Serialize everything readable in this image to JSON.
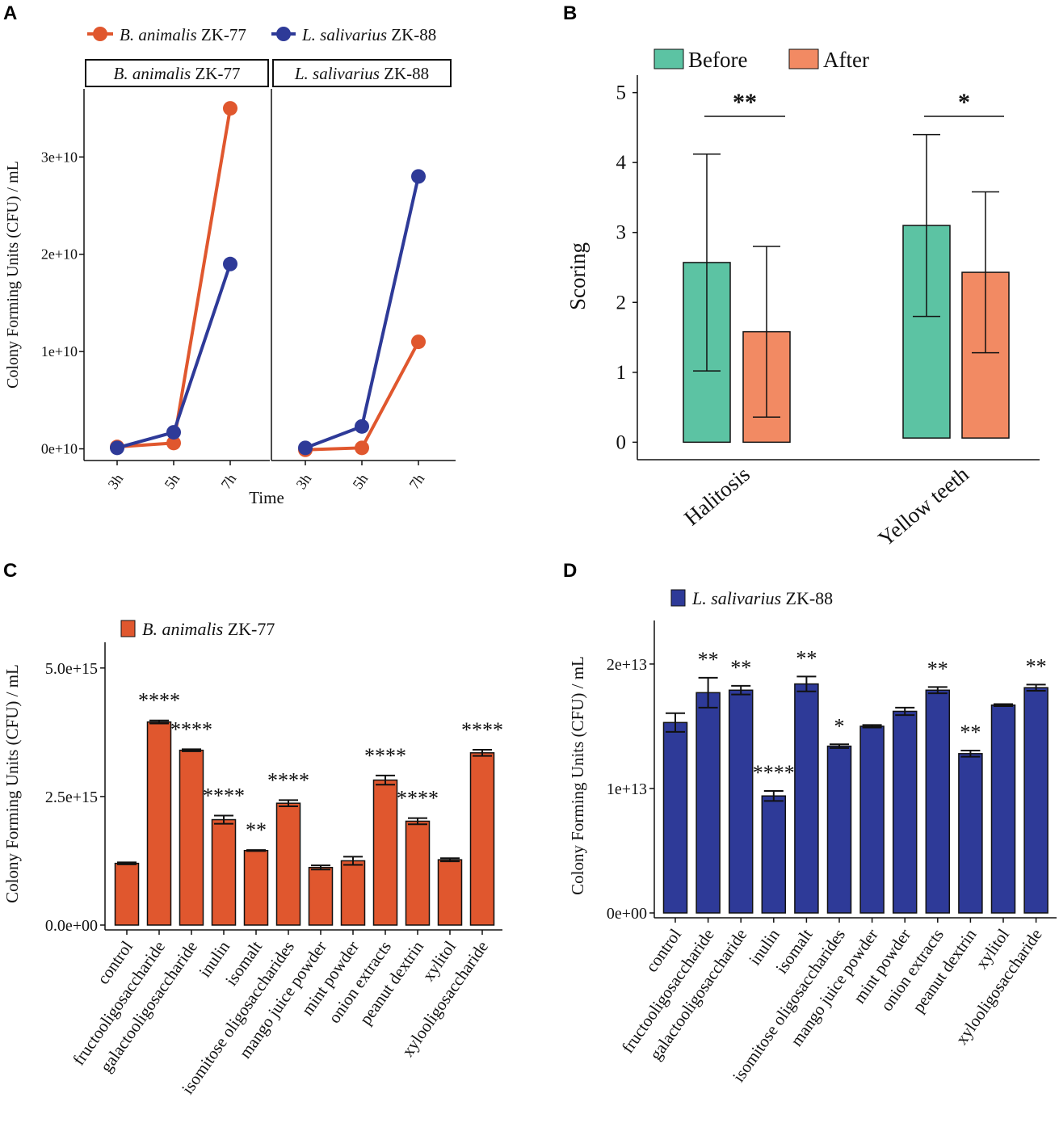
{
  "colors": {
    "orange": "#e0572e",
    "blue": "#2e3a98",
    "teal": "#5cc3a3",
    "salmon": "#f28a63",
    "black": "#111111"
  },
  "chart_data": [
    {
      "panel": "A",
      "type": "line",
      "legend": [
        "B. animalis ZK-77",
        "L. salivarius ZK-88"
      ],
      "facets": [
        "B. animalis ZK-77",
        "L. salivarius ZK-88"
      ],
      "categories": [
        "3h",
        "5h",
        "7h"
      ],
      "ylabel": "Colony Forming Units (CFU) / mL",
      "xlabel": "Time",
      "yticks": [
        "0e+10",
        "1e+10",
        "2e+10",
        "3e+10"
      ],
      "ylim": [
        -1200000000.0,
        37000000000.0
      ],
      "facet_series": [
        [
          {
            "name": "B. animalis ZK-77",
            "values": [
              200000000.0,
              600000000.0,
              35000000000.0
            ]
          },
          {
            "name": "L. salivarius ZK-88",
            "values": [
              100000000.0,
              1700000000.0,
              19000000000.0
            ]
          }
        ],
        [
          {
            "name": "B. animalis ZK-77",
            "values": [
              -100000000.0,
              100000000.0,
              11000000000.0
            ]
          },
          {
            "name": "L. salivarius ZK-88",
            "values": [
              100000000.0,
              2300000000.0,
              28000000000.0
            ]
          }
        ]
      ]
    },
    {
      "panel": "B",
      "type": "bar",
      "legend": [
        "Before",
        "After"
      ],
      "categories": [
        "Halitosis",
        "Yellow teeth"
      ],
      "ylabel": "Scoring",
      "yticks": [
        "0",
        "1",
        "2",
        "3",
        "4",
        "5"
      ],
      "ylim": [
        -0.25,
        5.25
      ],
      "series": [
        {
          "name": "Before",
          "values": [
            2.57,
            3.1
          ],
          "errors": [
            1.55,
            1.3
          ]
        },
        {
          "name": "After",
          "values": [
            1.58,
            2.43
          ],
          "errors": [
            1.22,
            1.15
          ]
        }
      ],
      "significance": [
        "**",
        "*"
      ]
    },
    {
      "panel": "C",
      "type": "bar",
      "legend": [
        "B. animalis ZK-77"
      ],
      "ylabel": "Colony Forming Units (CFU) / mL",
      "yticks": [
        "0.0e+00",
        "2.5e+15",
        "5.0e+15"
      ],
      "ylim": [
        0,
        5500000000000000.0
      ],
      "categories": [
        "control",
        "fructooligosaccharide",
        "galactooligosaccharide",
        "inulin",
        "isomalt",
        "isomitose oligosaccharides",
        "mango juice powder",
        "mint powder",
        "onion extracts",
        "peanut dextrin",
        "xylitol",
        "xylooligosaccharide"
      ],
      "values": [
        1200000000000000.0,
        3950000000000000.0,
        3400000000000000.0,
        2050000000000000.0,
        1450000000000000.0,
        2370000000000000.0,
        1120000000000000.0,
        1250000000000000.0,
        2820000000000000.0,
        2020000000000000.0,
        1270000000000000.0,
        3350000000000000.0
      ],
      "errors": [
        20000000000000.0,
        30000000000000.0,
        20000000000000.0,
        80000000000000.0,
        10000000000000.0,
        60000000000000.0,
        40000000000000.0,
        80000000000000.0,
        90000000000000.0,
        60000000000000.0,
        30000000000000.0,
        60000000000000.0
      ],
      "significance": [
        "",
        "****",
        "****",
        "****",
        "**",
        "****",
        "",
        "",
        "****",
        "****",
        "",
        "****"
      ]
    },
    {
      "panel": "D",
      "type": "bar",
      "legend": [
        "L. salivarius ZK-88"
      ],
      "ylabel": "Colony Forming Units (CFU) / mL",
      "yticks": [
        "0e+00",
        "1e+13",
        "2e+13"
      ],
      "ylim": [
        0,
        23500000000000.0
      ],
      "categories": [
        "control",
        "fructooligosaccharide",
        "galactooligosaccharide",
        "inulin",
        "isomalt",
        "isomitose oligosaccharides",
        "mango juice powder",
        "mint powder",
        "onion extracts",
        "peanut dextrin",
        "xylitol",
        "xylooligosaccharide"
      ],
      "values": [
        15300000000000.0,
        17700000000000.0,
        17900000000000.0,
        9400000000000.0,
        18400000000000.0,
        13400000000000.0,
        15000000000000.0,
        16200000000000.0,
        17900000000000.0,
        12800000000000.0,
        16700000000000.0,
        18100000000000.0
      ],
      "errors": [
        750000000000.0,
        1200000000000.0,
        350000000000.0,
        400000000000.0,
        600000000000.0,
        150000000000.0,
        100000000000.0,
        300000000000.0,
        250000000000.0,
        250000000000.0,
        80000000000.0,
        250000000000.0
      ],
      "significance": [
        "",
        "**",
        "**",
        "****",
        "**",
        "*",
        "",
        "",
        "**",
        "**",
        "",
        "**"
      ]
    }
  ],
  "panel_labels": [
    "A",
    "B",
    "C",
    "D"
  ]
}
